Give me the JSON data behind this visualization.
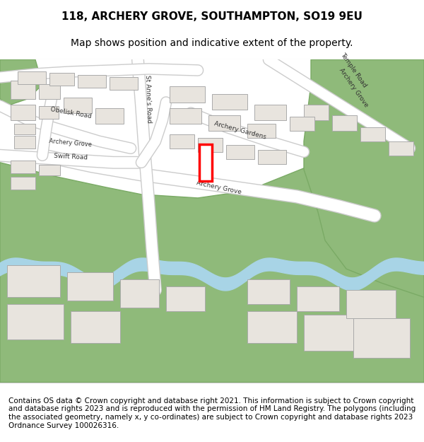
{
  "title": "118, ARCHERY GROVE, SOUTHAMPTON, SO19 9EU",
  "subtitle": "Map shows position and indicative extent of the property.",
  "footer": "Contains OS data © Crown copyright and database right 2021. This information is subject to Crown copyright and database rights 2023 and is reproduced with the permission of HM Land Registry. The polygons (including the associated geometry, namely x, y co-ordinates) are subject to Crown copyright and database rights 2023 Ordnance Survey 100026316.",
  "bg_color": "#f2ede8",
  "map_bg": "#f0ece6",
  "road_color": "#ffffff",
  "road_edge": "#cccccc",
  "building_fill": "#e8e4de",
  "building_edge": "#aaaaaa",
  "green_fill": "#8fba7a",
  "green_edge": "#7aaa65",
  "water_color": "#a8d4e6",
  "highlight_edge": "#ff0000",
  "highlight_lw": 2.5,
  "title_fontsize": 11,
  "subtitle_fontsize": 10,
  "footer_fontsize": 7.5,
  "label_fontsize": 6.5,
  "label_color": "#333333"
}
